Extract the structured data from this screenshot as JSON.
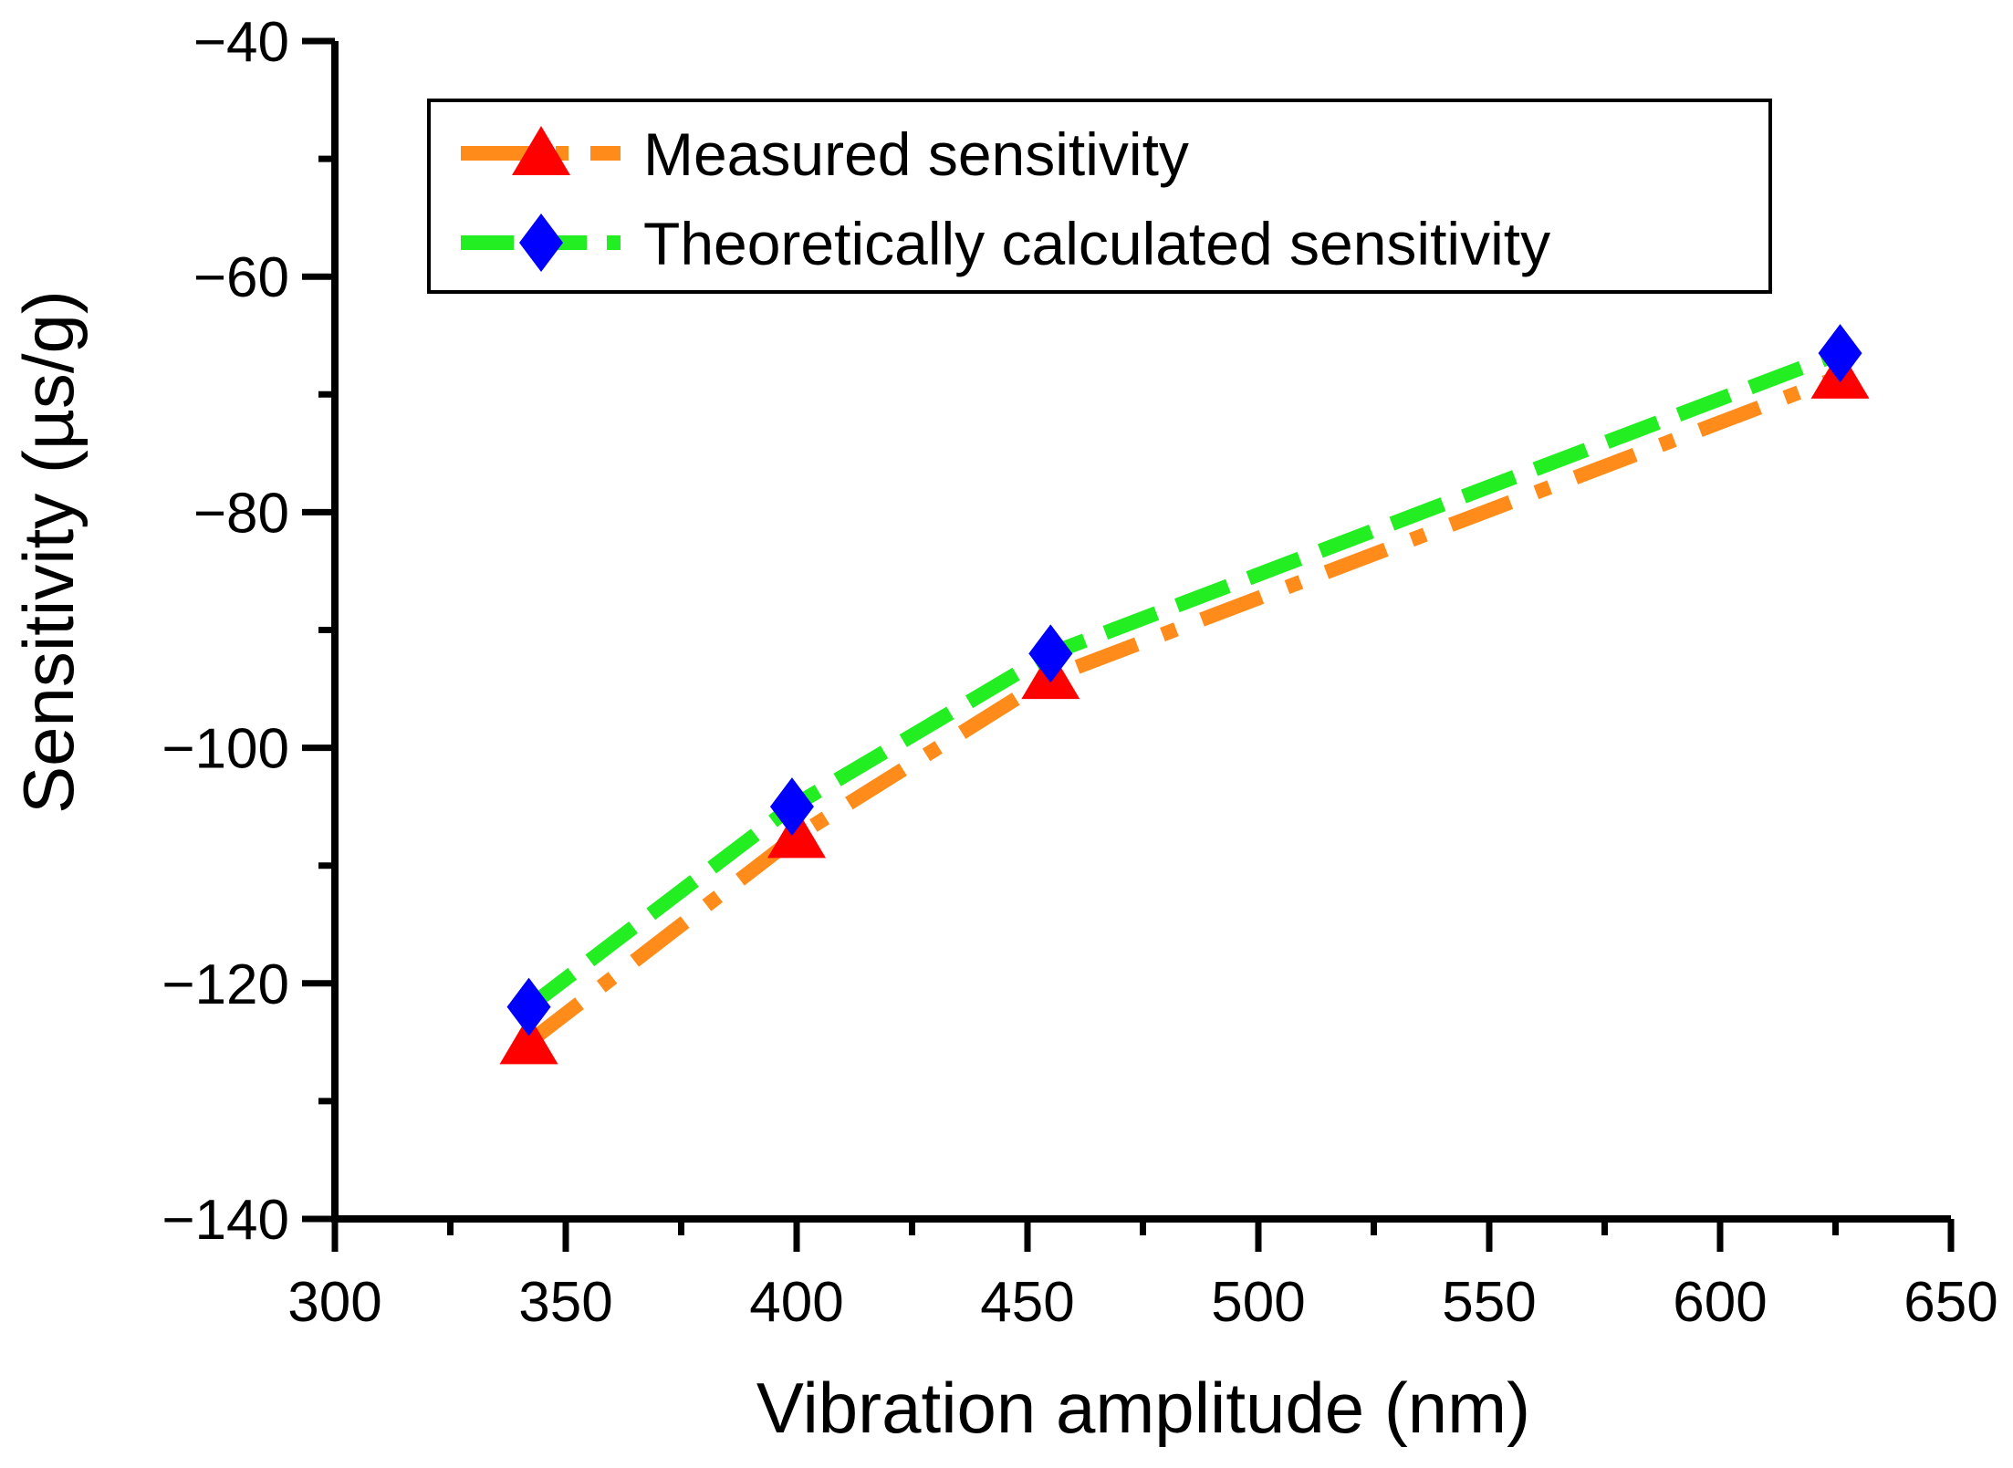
{
  "chart_data": {
    "type": "line",
    "xlabel": "Vibration amplitude (nm)",
    "ylabel": "Sensitivity (µs/g)",
    "xlim": [
      300,
      650
    ],
    "ylim": [
      -140,
      -40
    ],
    "xticks": [
      300,
      350,
      400,
      450,
      500,
      550,
      600,
      650
    ],
    "yticks": [
      -140,
      -120,
      -100,
      -80,
      -60,
      -40
    ],
    "xtick_labels": [
      "300",
      "350",
      "400",
      "450",
      "500",
      "550",
      "600",
      "650"
    ],
    "ytick_labels": [
      "−140",
      "−120",
      "−100",
      "−80",
      "−60",
      "−40"
    ],
    "legend_position": "top-right",
    "series": [
      {
        "name": "Measured sensitivity",
        "x": [
          342,
          400,
          455,
          626
        ],
        "values": [
          -125,
          -107.5,
          -94,
          -68.5
        ],
        "line_color": "#ff8c1a",
        "marker_color": "#ff0000",
        "marker": "triangle",
        "line_style": "dash-dot"
      },
      {
        "name": "Theoretically calculated sensitivity",
        "x": [
          342,
          399,
          455,
          626
        ],
        "values": [
          -122,
          -105,
          -92,
          -66.5
        ],
        "line_color": "#22ee22",
        "marker_color": "#0000ff",
        "marker": "diamond",
        "line_style": "dash"
      }
    ]
  }
}
